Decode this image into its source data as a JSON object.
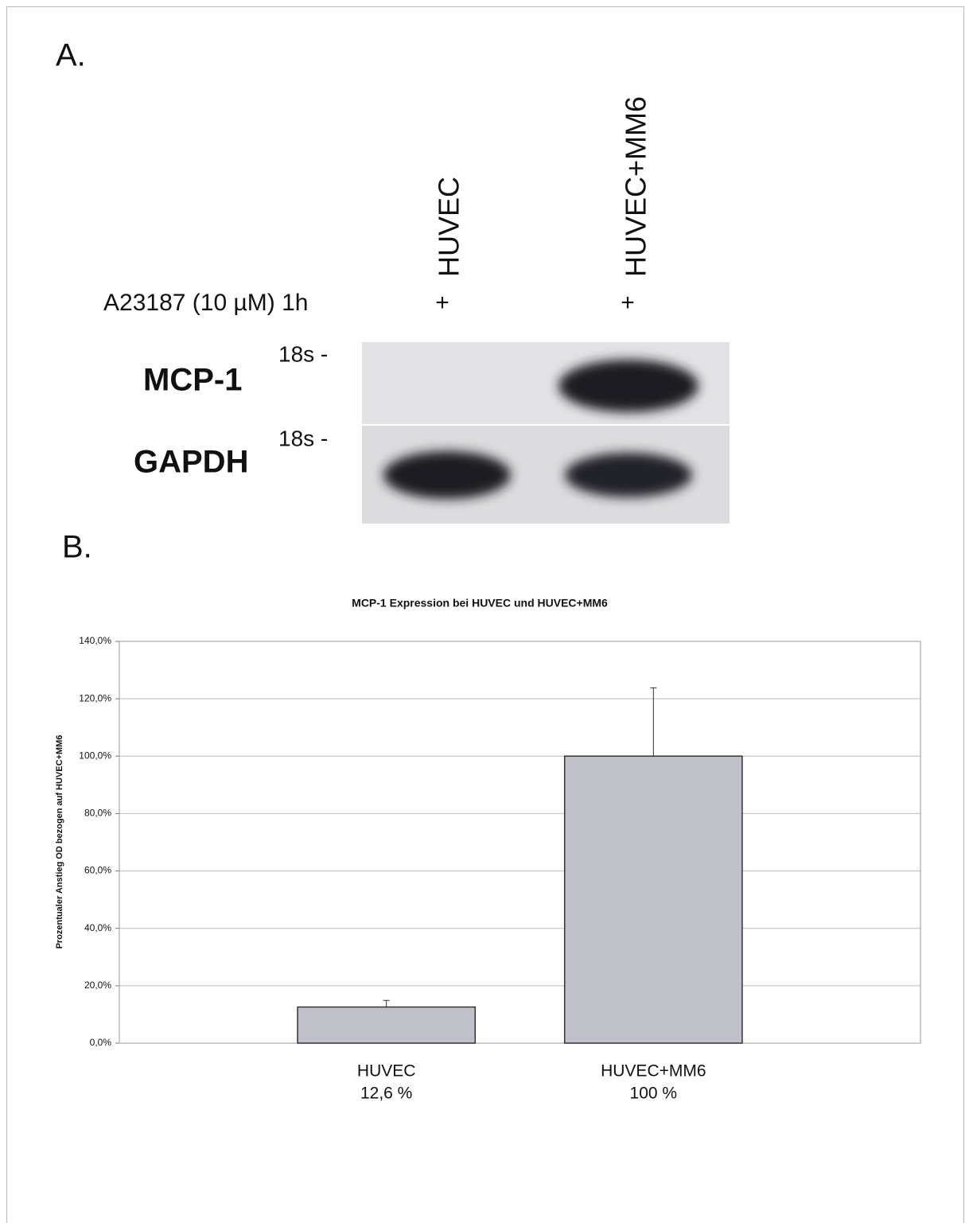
{
  "panel_a": {
    "label": "A.",
    "lanes": [
      "HUVEC",
      "HUVEC+MM6"
    ],
    "treatment": "A23187 (10 µM) 1h",
    "treatment_marks": [
      "+",
      "+"
    ],
    "genes": [
      "MCP-1",
      "GAPDH"
    ],
    "markers": [
      "18s -",
      "18s -"
    ]
  },
  "panel_b": {
    "label": "B."
  },
  "chart_data": {
    "type": "bar",
    "title": "MCP-1 Expression bei HUVEC und HUVEC+MM6",
    "y_label": "Prozentualer Anstieg OD bezogen auf HUVEC+MM6",
    "categories": [
      "HUVEC",
      "HUVEC+MM6"
    ],
    "values": [
      12.6,
      100
    ],
    "value_labels": [
      "12,6 %",
      "100 %"
    ],
    "errors": [
      2.3,
      23.8
    ],
    "color": "#c0c0c8",
    "ylim": [
      0,
      140
    ],
    "yticks": [
      {
        "value": 0,
        "label": "0,0%"
      },
      {
        "value": 20,
        "label": "20,0%"
      },
      {
        "value": 40,
        "label": "40,0%"
      },
      {
        "value": 60,
        "label": "60,0%"
      },
      {
        "value": 80,
        "label": "80,0%"
      },
      {
        "value": 100,
        "label": "100,0%"
      },
      {
        "value": 120,
        "label": "120,0%"
      },
      {
        "value": 140,
        "label": "140,0%"
      }
    ],
    "grid": true
  }
}
